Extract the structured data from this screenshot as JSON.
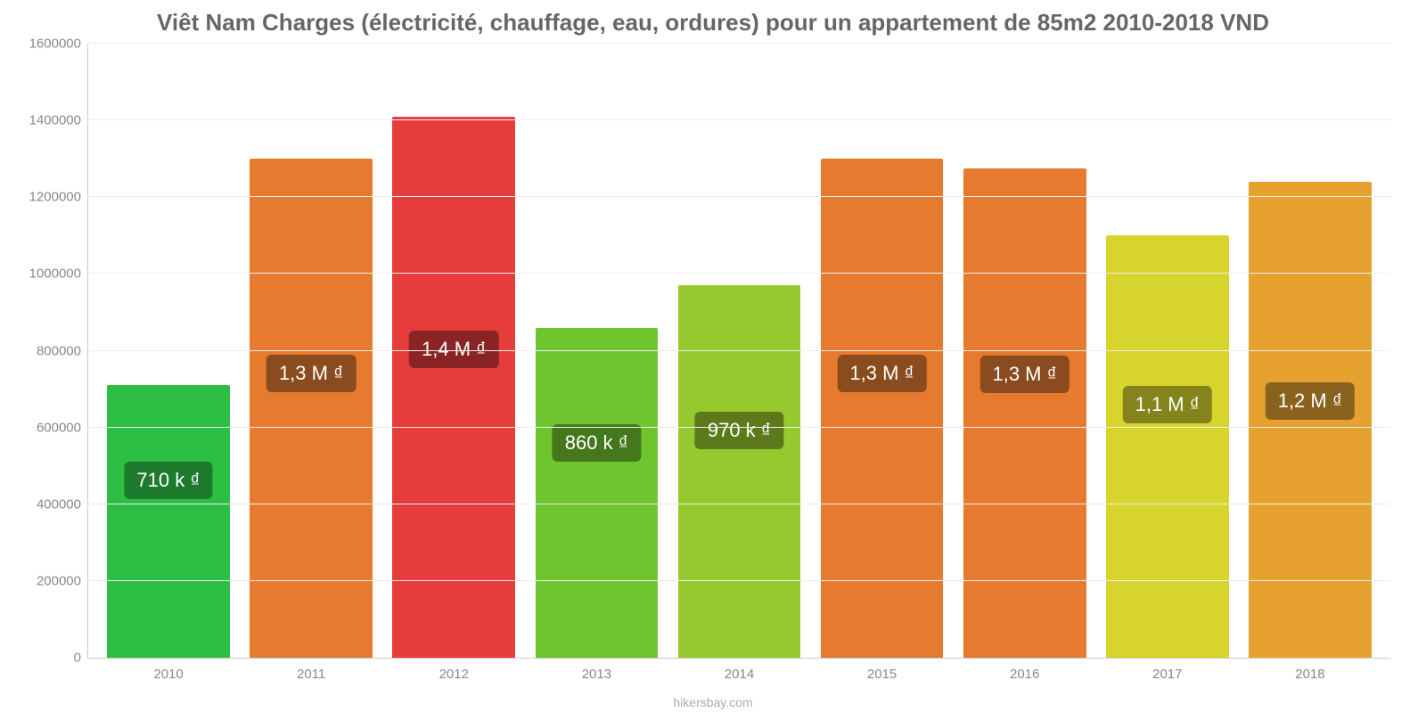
{
  "chart": {
    "type": "bar",
    "title": "Viêt Nam Charges (électricité, chauffage, eau, ordures) pour un appartement de 85m2 2010-2018 VND",
    "title_fontsize": 26,
    "title_color": "#666666",
    "background_color": "#ffffff",
    "grid_color": "#eeeeee",
    "axis_line_color": "#cccccc",
    "tick_label_color": "#888888",
    "tick_label_fontsize": 15,
    "y": {
      "min": 0,
      "max": 1600000,
      "tick_step": 200000,
      "ticks": [
        {
          "v": 0,
          "label": "0"
        },
        {
          "v": 200000,
          "label": "200000"
        },
        {
          "v": 400000,
          "label": "400000"
        },
        {
          "v": 600000,
          "label": "600000"
        },
        {
          "v": 800000,
          "label": "800000"
        },
        {
          "v": 1000000,
          "label": "1000000"
        },
        {
          "v": 1200000,
          "label": "1200000"
        },
        {
          "v": 1400000,
          "label": "1400000"
        },
        {
          "v": 1600000,
          "label": "1600000"
        }
      ]
    },
    "x_categories": [
      "2010",
      "2011",
      "2012",
      "2013",
      "2014",
      "2015",
      "2016",
      "2017",
      "2018"
    ],
    "bar_width_ratio": 0.86,
    "bars": [
      {
        "year": "2010",
        "value": 710000,
        "display": "710 k ₫",
        "bar_color": "#2dbe44",
        "badge_bg": "#1e7a2c",
        "badge_top_frac": 0.35
      },
      {
        "year": "2011",
        "value": 1300000,
        "display": "1,3 M ₫",
        "bar_color": "#e67a2f",
        "badge_bg": "#8a4b1e",
        "badge_top_frac": 0.43
      },
      {
        "year": "2012",
        "value": 1410000,
        "display": "1,4 M ₫",
        "bar_color": "#e63c3c",
        "badge_bg": "#8a2424",
        "badge_top_frac": 0.43
      },
      {
        "year": "2013",
        "value": 860000,
        "display": "860 k ₫",
        "bar_color": "#6fc52d",
        "badge_bg": "#45781c",
        "badge_top_frac": 0.35
      },
      {
        "year": "2014",
        "value": 970000,
        "display": "970 k ₫",
        "bar_color": "#95c92d",
        "badge_bg": "#5c7a1c",
        "badge_top_frac": 0.39
      },
      {
        "year": "2015",
        "value": 1300000,
        "display": "1,3 M ₫",
        "bar_color": "#e67a2f",
        "badge_bg": "#8a4b1e",
        "badge_top_frac": 0.43
      },
      {
        "year": "2016",
        "value": 1275000,
        "display": "1,3 M ₫",
        "bar_color": "#e67a2f",
        "badge_bg": "#8a4b1e",
        "badge_top_frac": 0.42
      },
      {
        "year": "2017",
        "value": 1100000,
        "display": "1,1 M ₫",
        "bar_color": "#d7d42d",
        "badge_bg": "#84831c",
        "badge_top_frac": 0.4
      },
      {
        "year": "2018",
        "value": 1240000,
        "display": "1,2 M ₫",
        "bar_color": "#e6a12f",
        "badge_bg": "#8a621e",
        "badge_top_frac": 0.46
      }
    ],
    "badge_fontsize": 22,
    "badge_text_color": "#ffffff",
    "attribution": "hikersbay.com",
    "attribution_color": "#aaaaaa",
    "attribution_fontsize": 14
  }
}
